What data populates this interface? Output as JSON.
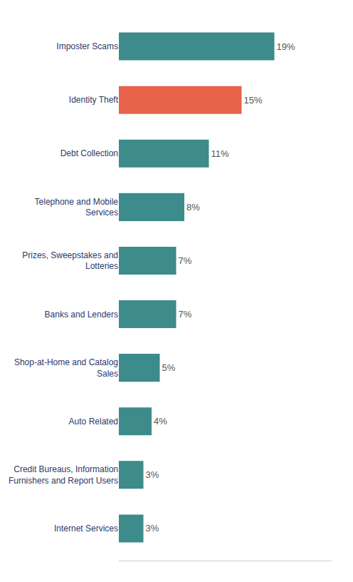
{
  "chart_data": {
    "type": "bar",
    "orientation": "horizontal",
    "categories": [
      "Internet Services",
      "Credit Bureaus, Information\nFurnishers and Report Users",
      "Auto Related",
      "Shop-at-Home and Catalog\nSales",
      "Banks and Lenders",
      "Prizes, Sweepstakes and\nLotteries",
      "Telephone and Mobile\nServices",
      "Debt Collection",
      "Identity Theft",
      "Imposter Scams"
    ],
    "values": [
      3,
      3,
      4,
      5,
      7,
      7,
      8,
      11,
      15,
      19
    ],
    "value_labels": [
      "3%",
      "3%",
      "4%",
      "5%",
      "7%",
      "7%",
      "8%",
      "11%",
      "15%",
      "19%"
    ],
    "colors": [
      "#3d8b8b",
      "#3d8b8b",
      "#3d8b8b",
      "#3d8b8b",
      "#3d8b8b",
      "#3d8b8b",
      "#3d8b8b",
      "#3d8b8b",
      "#e8634a",
      "#3d8b8b"
    ],
    "xlim": [
      0,
      26
    ],
    "data_labels": true,
    "tick_labels": "y",
    "grid": false
  }
}
